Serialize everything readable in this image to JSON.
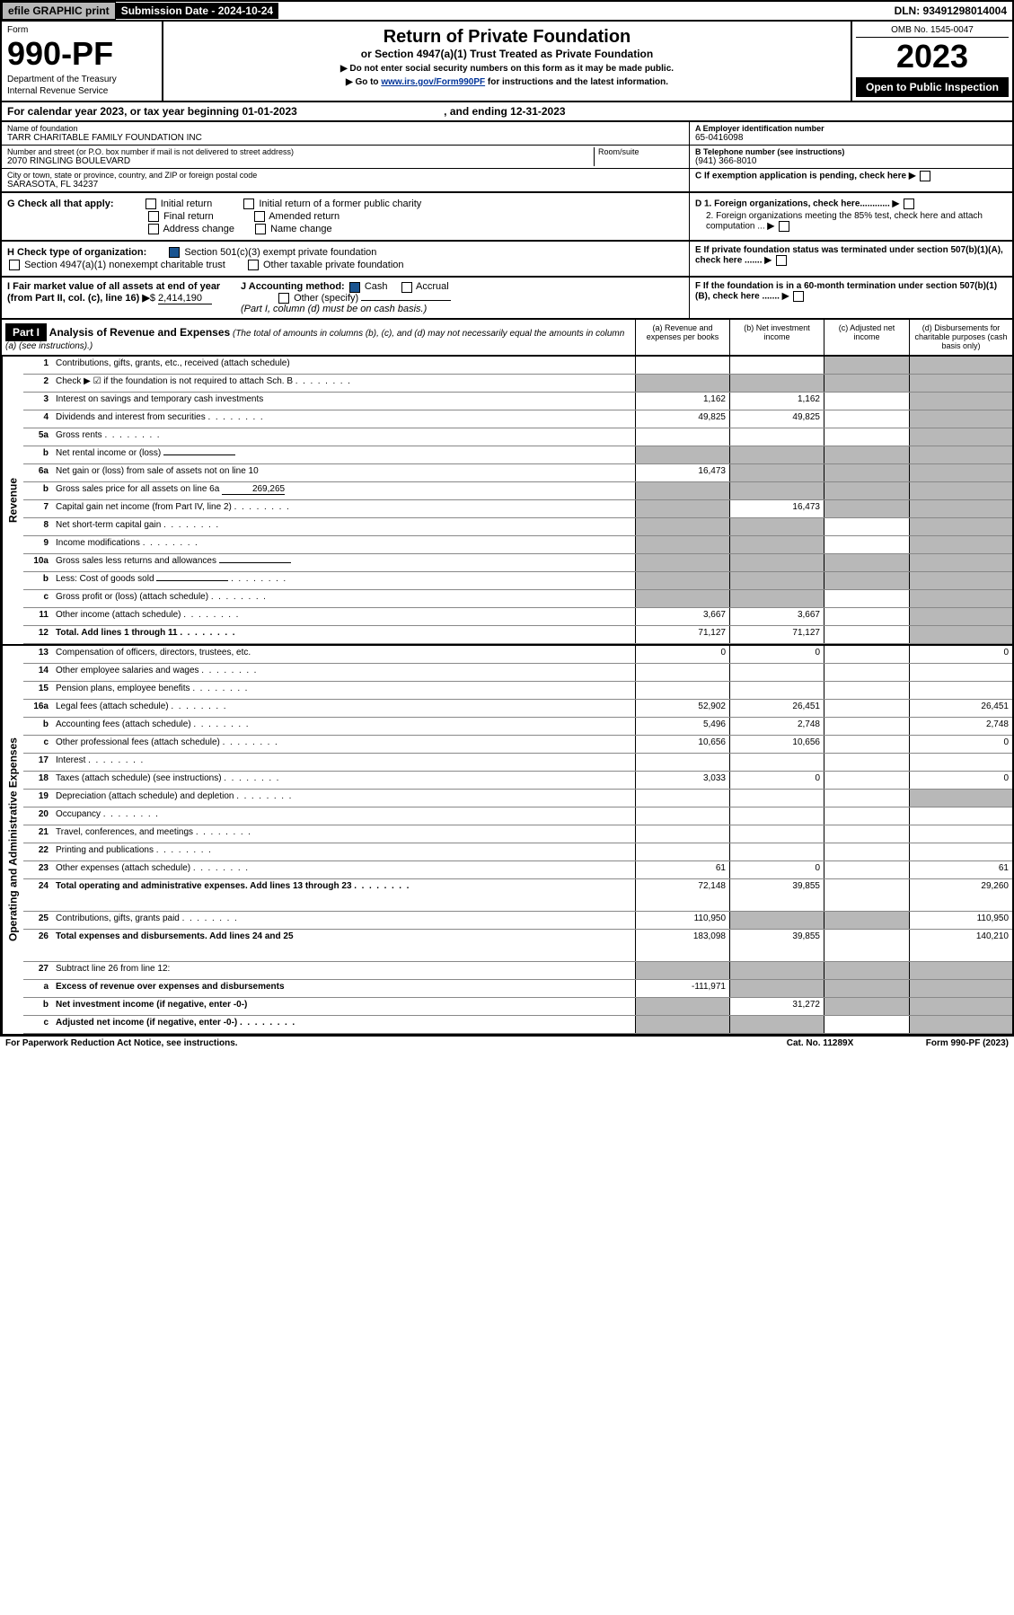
{
  "top": {
    "efile": "efile GRAPHIC print",
    "subdate_label": "Submission Date - ",
    "subdate": "2024-10-24",
    "dln": "DLN: 93491298014004"
  },
  "header": {
    "form_label": "Form",
    "form_num": "990-PF",
    "dept": "Department of the Treasury",
    "irs": "Internal Revenue Service",
    "title": "Return of Private Foundation",
    "subtitle": "or Section 4947(a)(1) Trust Treated as Private Foundation",
    "note1": "▶ Do not enter social security numbers on this form as it may be made public.",
    "note2_pre": "▶ Go to ",
    "note2_link": "www.irs.gov/Form990PF",
    "note2_post": " for instructions and the latest information.",
    "omb": "OMB No. 1545-0047",
    "year": "2023",
    "open": "Open to Public Inspection"
  },
  "calyear": {
    "text": "For calendar year 2023, or tax year beginning 01-01-2023",
    "ending": ", and ending 12-31-2023"
  },
  "info": {
    "name_label": "Name of foundation",
    "name": "TARR CHARITABLE FAMILY FOUNDATION INC",
    "addr_label": "Number and street (or P.O. box number if mail is not delivered to street address)",
    "room_label": "Room/suite",
    "addr": "2070 RINGLING BOULEVARD",
    "city_label": "City or town, state or province, country, and ZIP or foreign postal code",
    "city": "SARASOTA, FL  34237",
    "ein_label": "A Employer identification number",
    "ein": "65-0416098",
    "phone_label": "B Telephone number (see instructions)",
    "phone": "(941) 366-8010",
    "c_label": "C If exemption application is pending, check here",
    "d1": "D 1. Foreign organizations, check here............",
    "d2": "2. Foreign organizations meeting the 85% test, check here and attach computation ...",
    "e_label": "E  If private foundation status was terminated under section 507(b)(1)(A), check here .......",
    "f_label": "F  If the foundation is in a 60-month termination under section 507(b)(1)(B), check here .......",
    "g_label": "G Check all that apply:",
    "g_initial": "Initial return",
    "g_initial_fpc": "Initial return of a former public charity",
    "g_final": "Final return",
    "g_amended": "Amended return",
    "g_addr": "Address change",
    "g_name": "Name change",
    "h_label": "H Check type of organization:",
    "h_501c3": "Section 501(c)(3) exempt private foundation",
    "h_4947": "Section 4947(a)(1) nonexempt charitable trust",
    "h_other": "Other taxable private foundation",
    "i_label": "I Fair market value of all assets at end of year (from Part II, col. (c), line 16)",
    "i_val": "2,414,190",
    "j_label": "J Accounting method:",
    "j_cash": "Cash",
    "j_accrual": "Accrual",
    "j_other": "Other (specify)",
    "j_note": "(Part I, column (d) must be on cash basis.)"
  },
  "part1": {
    "label": "Part I",
    "title": "Analysis of Revenue and Expenses",
    "desc": " (The total of amounts in columns (b), (c), and (d) may not necessarily equal the amounts in column (a) (see instructions).)",
    "col_a": "(a)   Revenue and expenses per books",
    "col_b": "(b)   Net investment income",
    "col_c": "(c)   Adjusted net income",
    "col_d": "(d)   Disbursements for charitable purposes (cash basis only)"
  },
  "revenue": {
    "label": "Revenue",
    "rows": [
      {
        "n": "1",
        "label": "Contributions, gifts, grants, etc., received (attach schedule)",
        "a": "",
        "b": "",
        "c": "shade",
        "d": "shade"
      },
      {
        "n": "2",
        "label": "Check ▶ ☑ if the foundation is not required to attach Sch. B",
        "a": "shade",
        "b": "shade",
        "c": "shade",
        "d": "shade",
        "dots": true
      },
      {
        "n": "3",
        "label": "Interest on savings and temporary cash investments",
        "a": "1,162",
        "b": "1,162",
        "c": "",
        "d": "shade"
      },
      {
        "n": "4",
        "label": "Dividends and interest from securities",
        "a": "49,825",
        "b": "49,825",
        "c": "",
        "d": "shade",
        "dots": true
      },
      {
        "n": "5a",
        "label": "Gross rents",
        "a": "",
        "b": "",
        "c": "",
        "d": "shade",
        "dots": true
      },
      {
        "n": "b",
        "label": "Net rental income or (loss)",
        "a": "shade",
        "b": "shade",
        "c": "shade",
        "d": "shade",
        "inline": true
      },
      {
        "n": "6a",
        "label": "Net gain or (loss) from sale of assets not on line 10",
        "a": "16,473",
        "b": "shade",
        "c": "shade",
        "d": "shade"
      },
      {
        "n": "b",
        "label": "Gross sales price for all assets on line 6a",
        "a": "shade",
        "b": "shade",
        "c": "shade",
        "d": "shade",
        "inline_val": "269,265"
      },
      {
        "n": "7",
        "label": "Capital gain net income (from Part IV, line 2)",
        "a": "shade",
        "b": "16,473",
        "c": "shade",
        "d": "shade",
        "dots": true
      },
      {
        "n": "8",
        "label": "Net short-term capital gain",
        "a": "shade",
        "b": "shade",
        "c": "",
        "d": "shade",
        "dots": true
      },
      {
        "n": "9",
        "label": "Income modifications",
        "a": "shade",
        "b": "shade",
        "c": "",
        "d": "shade",
        "dots": true
      },
      {
        "n": "10a",
        "label": "Gross sales less returns and allowances",
        "a": "shade",
        "b": "shade",
        "c": "shade",
        "d": "shade",
        "inline": true
      },
      {
        "n": "b",
        "label": "Less: Cost of goods sold",
        "a": "shade",
        "b": "shade",
        "c": "shade",
        "d": "shade",
        "inline": true,
        "dots": true
      },
      {
        "n": "c",
        "label": "Gross profit or (loss) (attach schedule)",
        "a": "shade",
        "b": "shade",
        "c": "",
        "d": "shade",
        "dots": true
      },
      {
        "n": "11",
        "label": "Other income (attach schedule)",
        "a": "3,667",
        "b": "3,667",
        "c": "",
        "d": "shade",
        "dots": true
      },
      {
        "n": "12",
        "label": "Total. Add lines 1 through 11",
        "a": "71,127",
        "b": "71,127",
        "c": "",
        "d": "shade",
        "bold": true,
        "dots": true
      }
    ]
  },
  "expenses": {
    "label": "Operating and Administrative Expenses",
    "rows": [
      {
        "n": "13",
        "label": "Compensation of officers, directors, trustees, etc.",
        "a": "0",
        "b": "0",
        "c": "",
        "d": "0"
      },
      {
        "n": "14",
        "label": "Other employee salaries and wages",
        "a": "",
        "b": "",
        "c": "",
        "d": "",
        "dots": true
      },
      {
        "n": "15",
        "label": "Pension plans, employee benefits",
        "a": "",
        "b": "",
        "c": "",
        "d": "",
        "dots": true
      },
      {
        "n": "16a",
        "label": "Legal fees (attach schedule)",
        "a": "52,902",
        "b": "26,451",
        "c": "",
        "d": "26,451",
        "dots": true
      },
      {
        "n": "b",
        "label": "Accounting fees (attach schedule)",
        "a": "5,496",
        "b": "2,748",
        "c": "",
        "d": "2,748",
        "dots": true
      },
      {
        "n": "c",
        "label": "Other professional fees (attach schedule)",
        "a": "10,656",
        "b": "10,656",
        "c": "",
        "d": "0",
        "dots": true
      },
      {
        "n": "17",
        "label": "Interest",
        "a": "",
        "b": "",
        "c": "",
        "d": "",
        "dots": true
      },
      {
        "n": "18",
        "label": "Taxes (attach schedule) (see instructions)",
        "a": "3,033",
        "b": "0",
        "c": "",
        "d": "0",
        "dots": true
      },
      {
        "n": "19",
        "label": "Depreciation (attach schedule) and depletion",
        "a": "",
        "b": "",
        "c": "",
        "d": "shade",
        "dots": true
      },
      {
        "n": "20",
        "label": "Occupancy",
        "a": "",
        "b": "",
        "c": "",
        "d": "",
        "dots": true
      },
      {
        "n": "21",
        "label": "Travel, conferences, and meetings",
        "a": "",
        "b": "",
        "c": "",
        "d": "",
        "dots": true
      },
      {
        "n": "22",
        "label": "Printing and publications",
        "a": "",
        "b": "",
        "c": "",
        "d": "",
        "dots": true
      },
      {
        "n": "23",
        "label": "Other expenses (attach schedule)",
        "a": "61",
        "b": "0",
        "c": "",
        "d": "61",
        "dots": true
      },
      {
        "n": "24",
        "label": "Total operating and administrative expenses. Add lines 13 through 23",
        "a": "72,148",
        "b": "39,855",
        "c": "",
        "d": "29,260",
        "bold": true,
        "dots": true,
        "tall": true
      },
      {
        "n": "25",
        "label": "Contributions, gifts, grants paid",
        "a": "110,950",
        "b": "shade",
        "c": "shade",
        "d": "110,950",
        "dots": true
      },
      {
        "n": "26",
        "label": "Total expenses and disbursements. Add lines 24 and 25",
        "a": "183,098",
        "b": "39,855",
        "c": "",
        "d": "140,210",
        "bold": true,
        "tall": true
      },
      {
        "n": "27",
        "label": "Subtract line 26 from line 12:",
        "a": "shade",
        "b": "shade",
        "c": "shade",
        "d": "shade"
      },
      {
        "n": "a",
        "label": "Excess of revenue over expenses and disbursements",
        "a": "-111,971",
        "b": "shade",
        "c": "shade",
        "d": "shade",
        "bold": true
      },
      {
        "n": "b",
        "label": "Net investment income (if negative, enter -0-)",
        "a": "shade",
        "b": "31,272",
        "c": "shade",
        "d": "shade",
        "bold": true
      },
      {
        "n": "c",
        "label": "Adjusted net income (if negative, enter -0-)",
        "a": "shade",
        "b": "shade",
        "c": "",
        "d": "shade",
        "bold": true,
        "dots": true
      }
    ]
  },
  "footer": {
    "left": "For Paperwork Reduction Act Notice, see instructions.",
    "mid": "Cat. No. 11289X",
    "right": "Form 990-PF (2023)"
  }
}
